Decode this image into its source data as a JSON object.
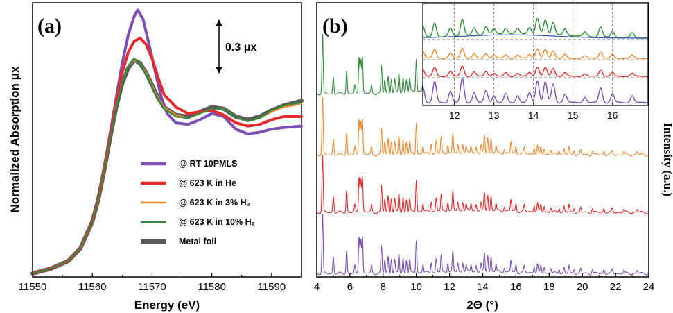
{
  "chart_data": [
    {
      "type": "line",
      "panel_label": "(a)",
      "xlabel": "Energy (eV)",
      "ylabel": "Normalized Absorption μx",
      "xlim": [
        11550,
        11595
      ],
      "x_ticks": [
        "11550",
        "11560",
        "11570",
        "11580",
        "11590"
      ],
      "scale_bar_label": "0.3 μx",
      "legend_position": "center-right",
      "series": [
        {
          "name": "@ RT 10PMLS",
          "color": "#7b4fb3",
          "x": [
            11550,
            11553,
            11556,
            11558,
            11560,
            11561,
            11562,
            11563,
            11564,
            11565,
            11566,
            11567,
            11567.6,
            11568.5,
            11569.5,
            11570.5,
            11571.5,
            11572.5,
            11574,
            11576,
            11578,
            11580,
            11582,
            11584,
            11586,
            11588,
            11590,
            11592,
            11595
          ],
          "y": [
            0.0,
            0.03,
            0.08,
            0.16,
            0.33,
            0.47,
            0.67,
            0.9,
            1.12,
            1.34,
            1.52,
            1.64,
            1.68,
            1.62,
            1.46,
            1.29,
            1.13,
            1.02,
            0.96,
            0.95,
            0.98,
            1.02,
            1.0,
            0.92,
            0.89,
            0.9,
            0.92,
            0.93,
            0.94
          ]
        },
        {
          "name": "@ 623 K in He",
          "color": "#e8282b",
          "x": [
            11550,
            11553,
            11556,
            11558,
            11560,
            11561,
            11562,
            11563,
            11564,
            11565,
            11566,
            11567,
            11568,
            11569,
            11570,
            11571,
            11572,
            11574,
            11576,
            11578,
            11580,
            11582,
            11584,
            11586,
            11588,
            11590,
            11592,
            11595
          ],
          "y": [
            0.0,
            0.03,
            0.08,
            0.16,
            0.33,
            0.47,
            0.66,
            0.88,
            1.09,
            1.28,
            1.41,
            1.48,
            1.5,
            1.46,
            1.37,
            1.25,
            1.14,
            1.06,
            1.02,
            1.03,
            1.04,
            1.01,
            0.96,
            0.94,
            0.95,
            0.98,
            1.0,
            1.0
          ]
        },
        {
          "name": "@ 623 K in 3% H₂",
          "color": "#f0882d",
          "x": [
            11550,
            11553,
            11556,
            11558,
            11560,
            11561,
            11562,
            11563,
            11564,
            11565,
            11566,
            11567,
            11568,
            11569,
            11570,
            11571,
            11572,
            11574,
            11576,
            11578,
            11580,
            11582,
            11584,
            11586,
            11588,
            11590,
            11592,
            11595
          ],
          "y": [
            0.0,
            0.03,
            0.08,
            0.16,
            0.33,
            0.47,
            0.66,
            0.87,
            1.06,
            1.22,
            1.32,
            1.36,
            1.34,
            1.28,
            1.2,
            1.12,
            1.06,
            1.01,
            0.99,
            1.02,
            1.05,
            1.05,
            1.0,
            0.97,
            0.99,
            1.03,
            1.06,
            1.08
          ]
        },
        {
          "name": "@ 623 K in 10% H₂",
          "color": "#2e8b3a",
          "x": [
            11550,
            11553,
            11556,
            11558,
            11560,
            11561,
            11562,
            11563,
            11564,
            11565,
            11566,
            11567,
            11568,
            11569,
            11570,
            11571,
            11572,
            11574,
            11576,
            11578,
            11580,
            11582,
            11584,
            11586,
            11588,
            11590,
            11592,
            11595
          ],
          "y": [
            0.0,
            0.03,
            0.08,
            0.16,
            0.33,
            0.47,
            0.66,
            0.87,
            1.06,
            1.22,
            1.32,
            1.37,
            1.34,
            1.27,
            1.19,
            1.11,
            1.05,
            1.0,
            0.99,
            1.02,
            1.05,
            1.05,
            1.0,
            0.97,
            0.99,
            1.04,
            1.07,
            1.09
          ]
        },
        {
          "name": "Metal foil",
          "color": "#5a5a5a",
          "x": [
            11550,
            11553,
            11556,
            11558,
            11560,
            11561,
            11562,
            11563,
            11564,
            11565,
            11566,
            11567,
            11568,
            11569,
            11570,
            11571,
            11572,
            11574,
            11576,
            11578,
            11580,
            11582,
            11584,
            11586,
            11588,
            11590,
            11592,
            11595
          ],
          "y": [
            0.0,
            0.03,
            0.08,
            0.16,
            0.33,
            0.47,
            0.66,
            0.87,
            1.06,
            1.21,
            1.31,
            1.36,
            1.34,
            1.28,
            1.2,
            1.12,
            1.06,
            1.01,
            1.0,
            1.03,
            1.06,
            1.05,
            1.0,
            0.98,
            1.0,
            1.04,
            1.07,
            1.1
          ]
        }
      ]
    },
    {
      "type": "line",
      "panel_label": "(b)",
      "xlabel": "2Θ (°)",
      "ylabel": "Intensity (a.u.)",
      "xlim": [
        4,
        24
      ],
      "x_ticks": [
        "4",
        "6",
        "8",
        "10",
        "12",
        "14",
        "16",
        "18",
        "20",
        "22",
        "24"
      ],
      "peaks": {
        "positions": [
          4.35,
          5.0,
          5.8,
          6.3,
          6.55,
          6.65,
          6.75,
          7.3,
          7.9,
          8.1,
          8.3,
          8.5,
          8.7,
          8.95,
          9.2,
          9.4,
          9.6,
          10.0,
          10.4,
          10.9,
          11.2,
          11.5,
          11.9,
          12.2,
          12.5,
          12.8,
          13.0,
          13.3,
          13.6,
          13.9,
          14.1,
          14.3,
          14.5,
          14.8,
          15.3,
          15.7,
          16.0,
          16.5,
          17.1,
          17.3,
          17.5,
          17.7,
          18.1,
          18.6,
          18.9,
          19.2,
          19.5,
          19.9,
          20.6,
          21.3,
          21.8,
          22.5,
          23.3
        ],
        "heights": [
          1.0,
          0.28,
          0.38,
          0.12,
          0.62,
          0.58,
          0.62,
          0.12,
          0.45,
          0.22,
          0.28,
          0.25,
          0.22,
          0.32,
          0.25,
          0.22,
          0.22,
          0.55,
          0.13,
          0.18,
          0.22,
          0.28,
          0.16,
          0.33,
          0.14,
          0.16,
          0.1,
          0.12,
          0.1,
          0.13,
          0.3,
          0.28,
          0.25,
          0.12,
          0.08,
          0.2,
          0.12,
          0.1,
          0.12,
          0.14,
          0.12,
          0.1,
          0.08,
          0.08,
          0.1,
          0.12,
          0.08,
          0.08,
          0.07,
          0.07,
          0.06,
          0.05,
          0.05
        ]
      },
      "series": [
        {
          "name": "@ RT 10PMLS",
          "color": "#7b4fb3",
          "scale": 0.95
        },
        {
          "name": "@ 623 K in He",
          "color": "#e8282b",
          "scale": 0.92
        },
        {
          "name": "@ 623 K in 3% H₂",
          "color": "#f0882d",
          "scale": 0.92
        },
        {
          "name": "@ 623 K in 10% H₂",
          "color": "#2e8b3a",
          "scale": 0.95
        }
      ],
      "inset": {
        "xlim": [
          11.2,
          16.9
        ],
        "x_ticks": [
          "12",
          "13",
          "14",
          "15",
          "16"
        ],
        "grid_lines": [
          12,
          13,
          14,
          15,
          16
        ]
      }
    }
  ]
}
